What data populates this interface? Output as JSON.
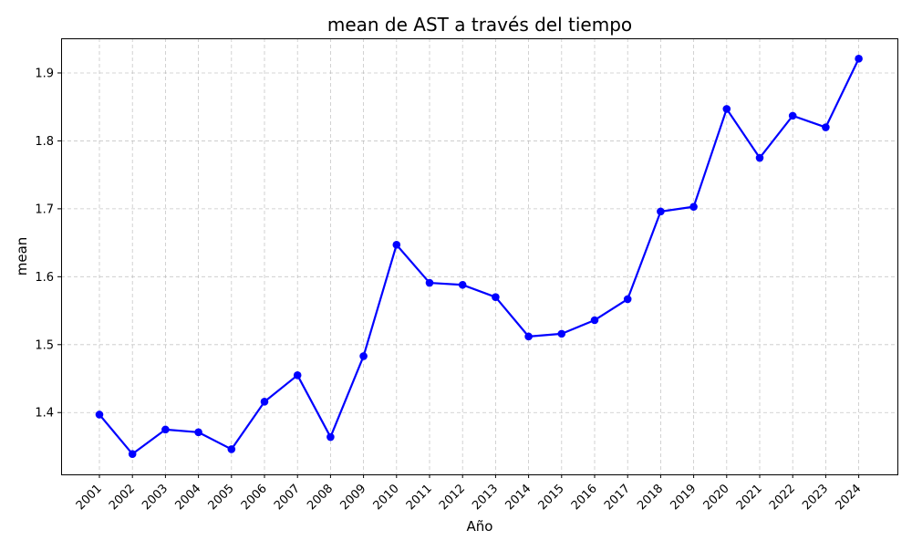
{
  "chart_data": {
    "type": "line",
    "title": "mean de AST a través del tiempo",
    "xlabel": "Año",
    "ylabel": "mean",
    "x": [
      "2001",
      "2002",
      "2003",
      "2004",
      "2005",
      "2006",
      "2007",
      "2008",
      "2009",
      "2010",
      "2011",
      "2012",
      "2013",
      "2014",
      "2015",
      "2016",
      "2017",
      "2018",
      "2019",
      "2020",
      "2021",
      "2022",
      "2023",
      "2024"
    ],
    "series": [
      {
        "values": [
          1.397,
          1.339,
          1.375,
          1.371,
          1.346,
          1.416,
          1.455,
          1.364,
          1.483,
          1.647,
          1.591,
          1.588,
          1.57,
          1.512,
          1.516,
          1.536,
          1.567,
          1.696,
          1.703,
          1.847,
          1.775,
          1.837,
          1.82,
          1.921
        ],
        "color": "#0000ff",
        "marker": "circle"
      }
    ],
    "ylim": [
      1.309,
      1.951
    ],
    "yticks": [
      1.4,
      1.5,
      1.6,
      1.7,
      1.8,
      1.9
    ],
    "ytick_labels": [
      "1.4",
      "1.5",
      "1.6",
      "1.7",
      "1.8",
      "1.9"
    ],
    "grid": true,
    "grid_style": "dashed",
    "xtick_rotation": 45
  }
}
